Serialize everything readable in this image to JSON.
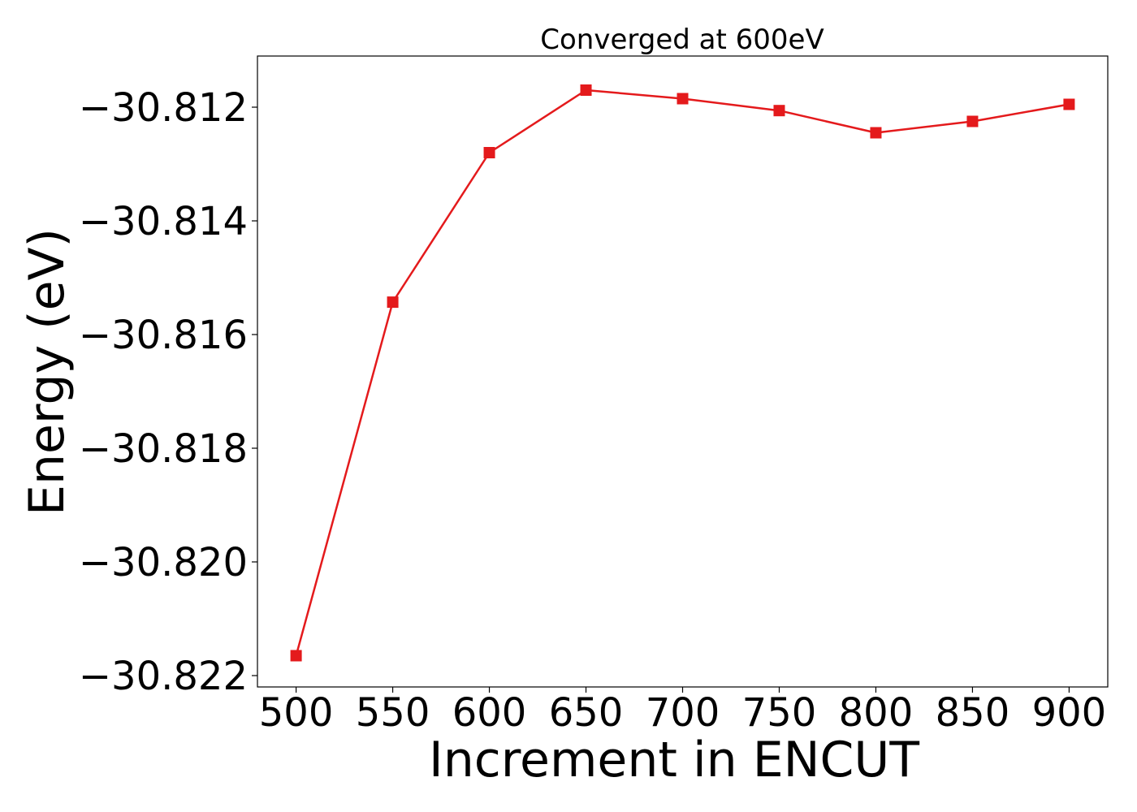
{
  "chart_data": {
    "type": "line",
    "title": "Converged at 600eV",
    "xlabel": "Increment in ENCUT",
    "ylabel": "Energy (eV)",
    "x": [
      500,
      550,
      600,
      650,
      700,
      750,
      800,
      850,
      900
    ],
    "series": [
      {
        "values": [
          -30.82165,
          -30.81543,
          -30.8128,
          -30.8117,
          -30.81185,
          -30.81206,
          -30.81245,
          -30.81225,
          -30.81195
        ],
        "color": "#e41a1c",
        "marker": "square"
      }
    ],
    "xticks": [
      500,
      550,
      600,
      650,
      700,
      750,
      800,
      850,
      900
    ],
    "xtick_labels": [
      "500",
      "550",
      "600",
      "650",
      "700",
      "750",
      "800",
      "850",
      "900"
    ],
    "yticks": [
      -30.822,
      -30.82,
      -30.818,
      -30.816,
      -30.814,
      -30.812
    ],
    "ytick_labels": [
      "−30.822",
      "−30.820",
      "−30.818",
      "−30.816",
      "−30.814",
      "−30.812"
    ],
    "xlim": [
      480,
      920
    ],
    "ylim": [
      -30.8222,
      -30.8111
    ],
    "grid": false,
    "legend": "none"
  }
}
